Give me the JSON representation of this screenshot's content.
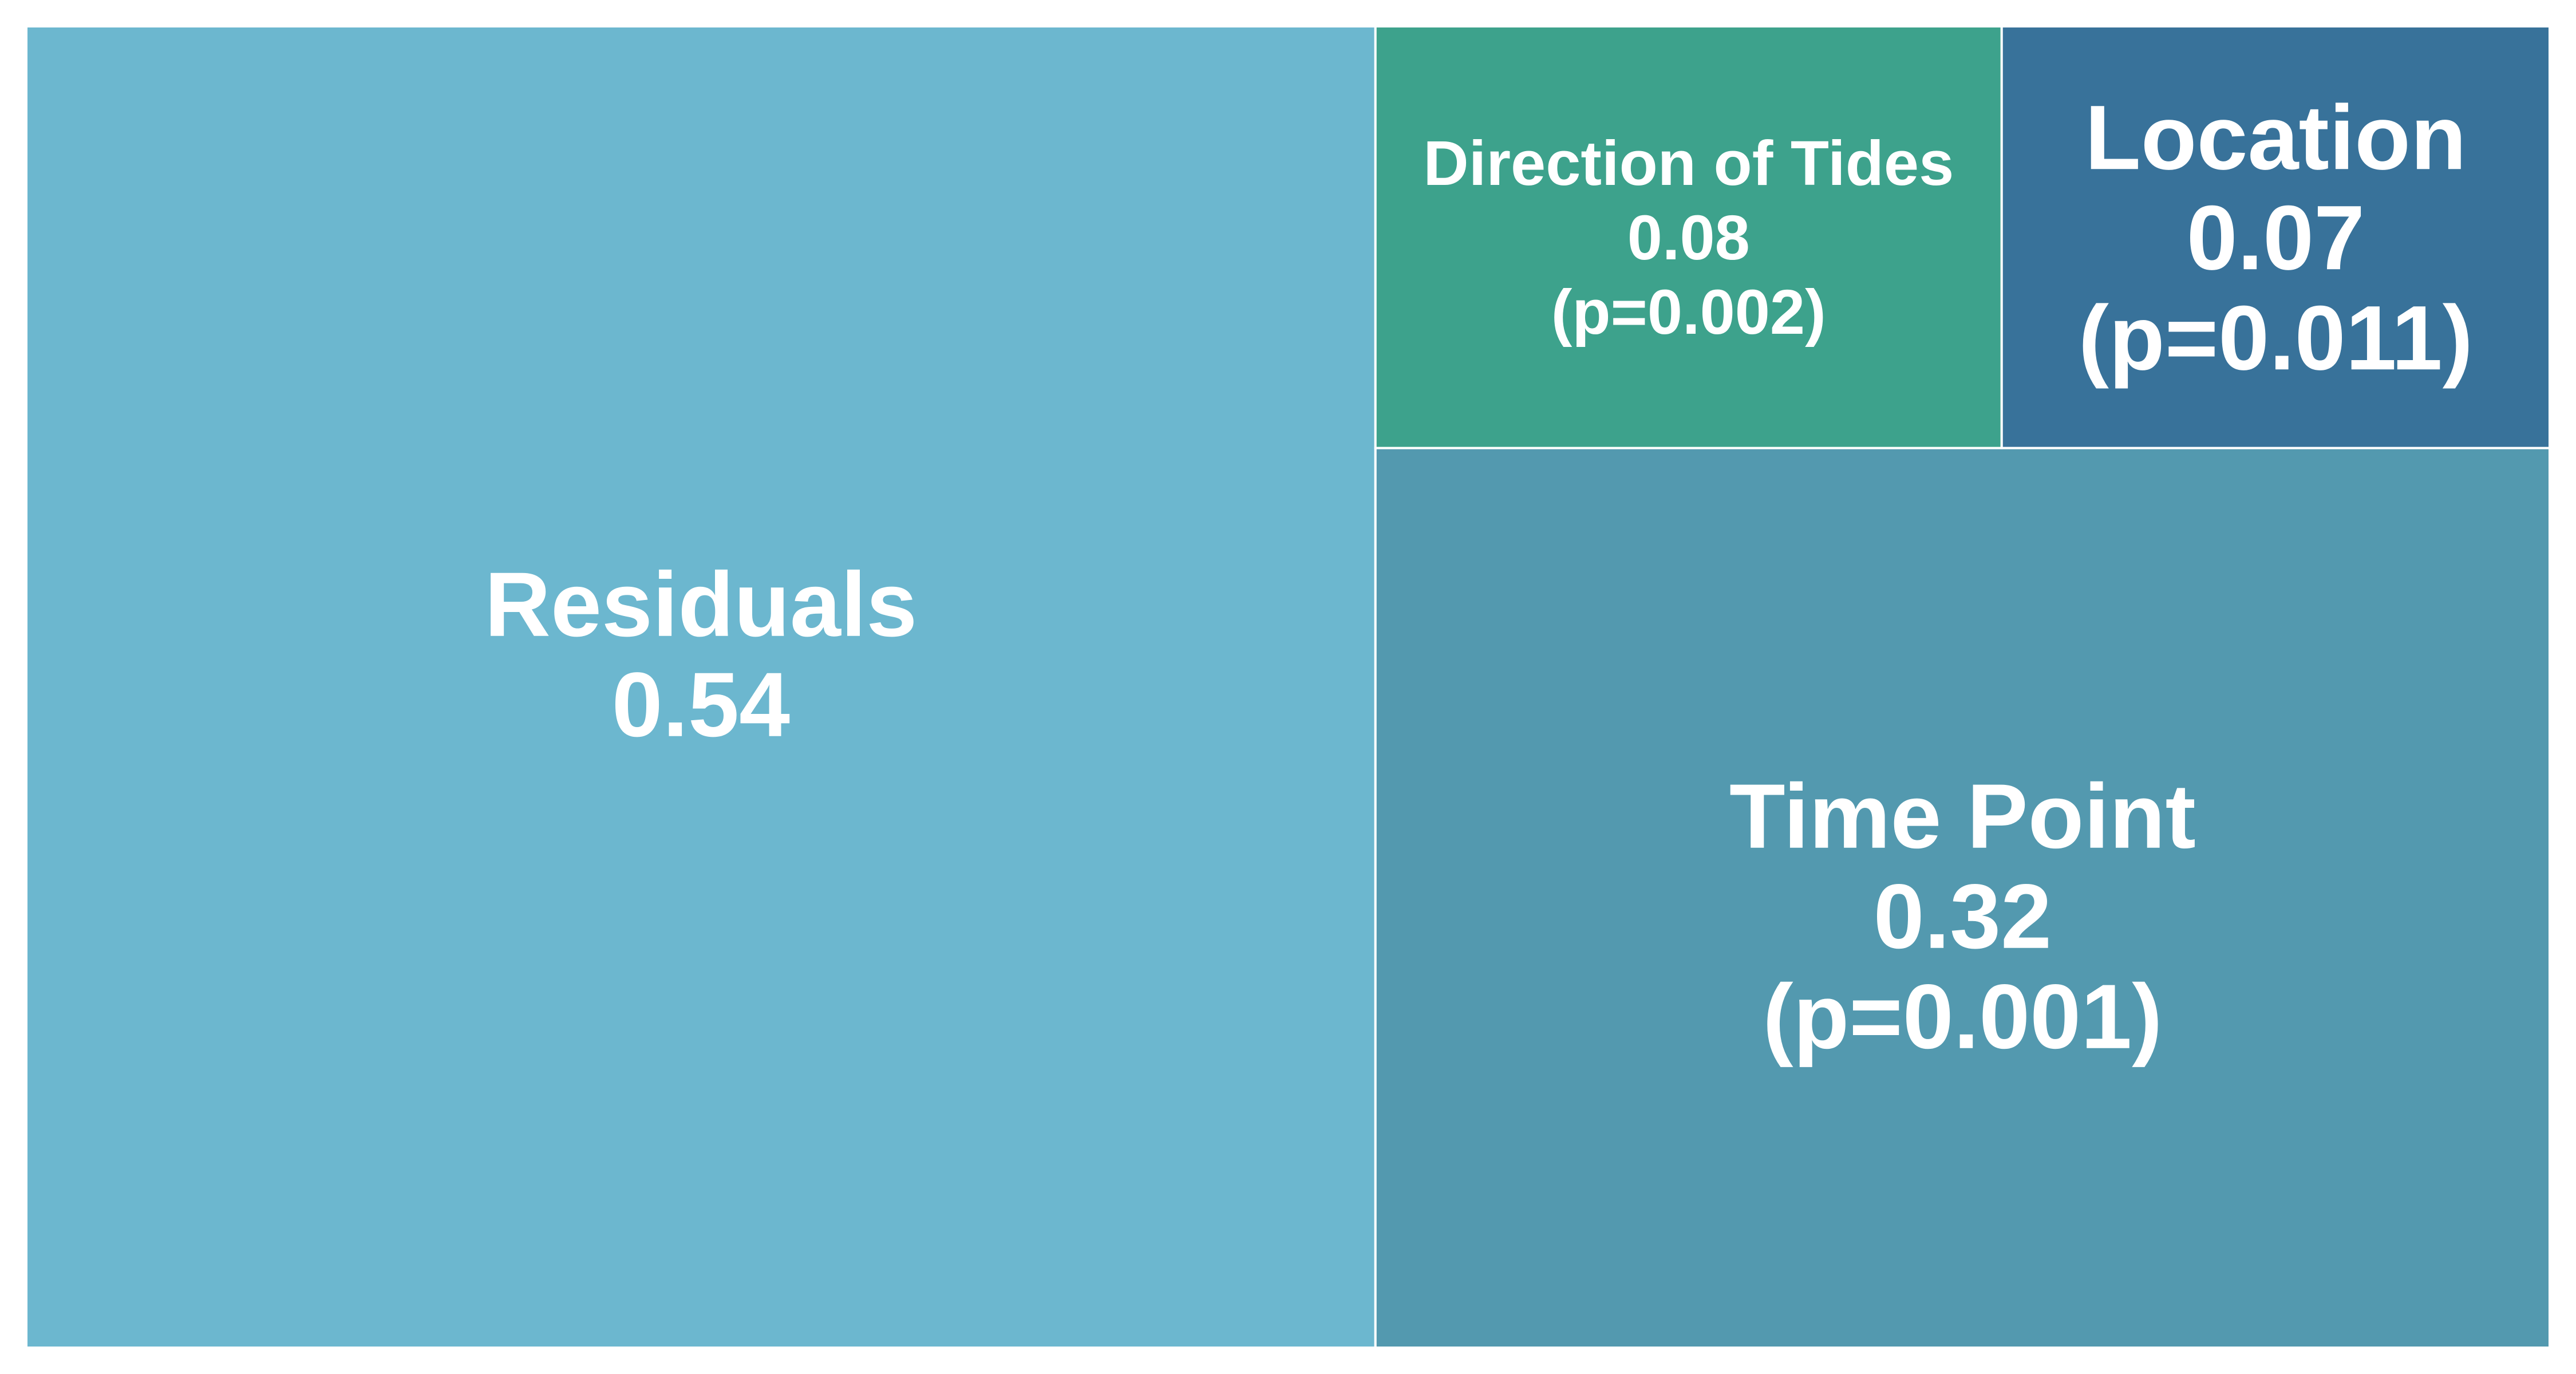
{
  "chart_data": {
    "type": "treemap",
    "title": "",
    "tiles": [
      {
        "label": "Residuals",
        "value": 0.54,
        "value_label": "0.54",
        "p_label": "",
        "color": "#6CB7CF"
      },
      {
        "label": "Time Point",
        "value": 0.32,
        "value_label": "0.32",
        "p_label": "(p=0.001)",
        "color": "#5399AF"
      },
      {
        "label": "Direction of Tides",
        "value": 0.08,
        "value_label": "0.08",
        "p_label": "(p=0.002)",
        "color": "#3DA28C"
      },
      {
        "label": "Location",
        "value": 0.07,
        "value_label": "0.07",
        "p_label": "(p=0.011)",
        "color": "#38729A"
      }
    ]
  }
}
